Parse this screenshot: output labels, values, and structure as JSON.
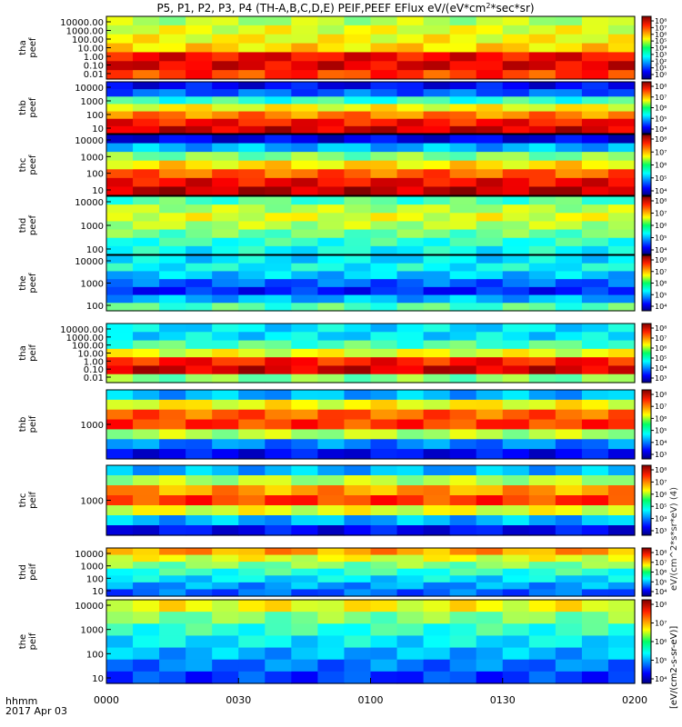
{
  "chart_data": {
    "type": "heatmap",
    "title": "P5, P1, P2, P3, P4 (TH-A,B,C,D,E) PEIF,PEEF EFlux eV/(eV*cm",
    "title_sup": "2",
    "title_tail": "*sec*sr)",
    "x_label_corner": "hhmm",
    "date_label": "2017 Apr 03",
    "x_ticks": [
      "0000",
      "0030",
      "0100",
      "0130",
      "0200"
    ],
    "x_range_minutes": [
      0,
      120
    ],
    "colorbar_label": "[eV/(cm2-s-sr-eV)]",
    "colorbar_label_overlap": "eV/(cm^2*s*sr*eV) (4)",
    "colorbar_ticks": [
      "10⁸",
      "10⁷",
      "10⁶",
      "10⁵",
      "10⁴"
    ],
    "panels": [
      {
        "name": "tha peef",
        "probe": "tha",
        "quantity": "peef",
        "y_ticks": [
          "10000.00",
          "1000.00",
          "100.00",
          "10.00",
          "1.00",
          "0.10",
          "0.01"
        ],
        "colorbar_ticks": [
          "10⁸",
          "10⁷",
          "10⁶",
          "10⁵",
          "10⁴",
          "10³",
          "10²",
          "10¹",
          "10⁰"
        ]
      },
      {
        "name": "thb peef",
        "probe": "thb",
        "quantity": "peef",
        "y_ticks": [
          "10000",
          "1000",
          "100",
          "10"
        ],
        "colorbar_ticks": [
          "10⁸",
          "10⁷",
          "10⁶",
          "10⁵",
          "10⁴"
        ]
      },
      {
        "name": "thc peef",
        "probe": "thc",
        "quantity": "peef",
        "y_ticks": [
          "10000",
          "1000",
          "100",
          "10"
        ],
        "colorbar_ticks": [
          "10⁸",
          "10⁷",
          "10⁶",
          "10⁵",
          "10⁴"
        ]
      },
      {
        "name": "thd peef",
        "probe": "thd",
        "quantity": "peef",
        "y_ticks": [
          "10000",
          "1000",
          "100"
        ],
        "colorbar_ticks": [
          "10⁸",
          "10⁷",
          "10⁶",
          "10⁵",
          "10⁴"
        ]
      },
      {
        "name": "the peef",
        "probe": "the",
        "quantity": "peef",
        "y_ticks": [
          "10000",
          "1000",
          "100"
        ],
        "colorbar_ticks": [
          "10⁸",
          "10⁷",
          "10⁶",
          "10⁵",
          "10⁴"
        ]
      },
      {
        "name": "tha peif",
        "probe": "tha",
        "quantity": "peif",
        "y_ticks": [
          "10000.00",
          "1000.00",
          "100.00",
          "10.00",
          "1.00",
          "0.10",
          "0.01"
        ],
        "colorbar_ticks": [
          "10⁸",
          "10⁷",
          "10⁶",
          "10⁵",
          "10⁴",
          "10³"
        ]
      },
      {
        "name": "thb peif",
        "probe": "thb",
        "quantity": "peif",
        "y_ticks": [
          "1000"
        ],
        "colorbar_ticks": [
          "10⁸",
          "10⁷",
          "10⁶",
          "10⁵",
          "10⁴",
          "10³"
        ]
      },
      {
        "name": "thc peif",
        "probe": "thc",
        "quantity": "peif",
        "y_ticks": [
          "1000"
        ],
        "colorbar_ticks": [
          "10⁸",
          "10⁷",
          "10⁶",
          "10⁵",
          "10⁴",
          "10³"
        ]
      },
      {
        "name": "thd peif",
        "probe": "thd",
        "quantity": "peif",
        "y_ticks": [
          "10000",
          "1000",
          "100",
          "10"
        ],
        "colorbar_ticks": [
          "10⁸",
          "10⁷",
          "10⁶",
          "10⁵",
          "10⁴"
        ]
      },
      {
        "name": "the peif",
        "probe": "the",
        "quantity": "peif",
        "y_ticks": [
          "10000",
          "1000",
          "100",
          "10"
        ],
        "colorbar_ticks": [
          "10⁸",
          "10⁷",
          "10⁶",
          "10⁵",
          "10⁴"
        ]
      }
    ]
  }
}
